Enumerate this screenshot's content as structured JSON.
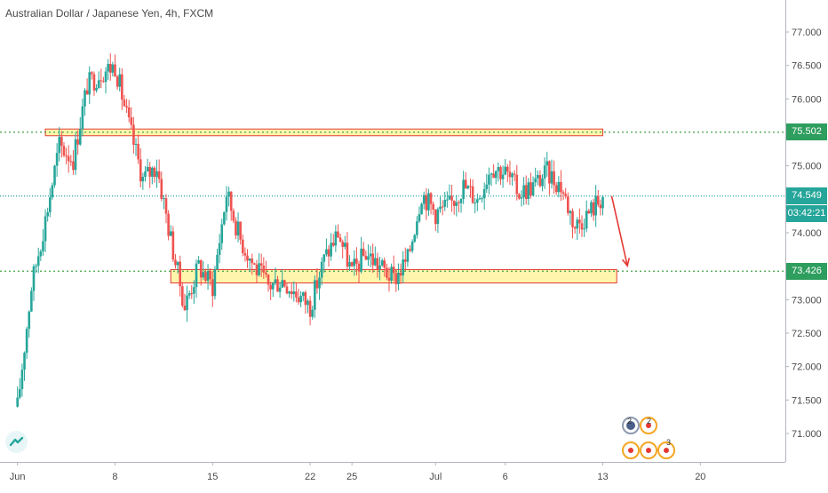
{
  "header": {
    "title": "Australian Dollar / Japanese Yen, 4h, FXCM"
  },
  "price_axis": {
    "tick_labels": [
      "77.000",
      "76.500",
      "76.000",
      "75.000",
      "74.000",
      "73.000",
      "72.500",
      "72.000",
      "71.500",
      "71.000"
    ]
  },
  "time_axis": {
    "tick_labels": [
      "Jun",
      "8",
      "15",
      "22",
      "25",
      "Jul",
      "6",
      "13",
      "20"
    ]
  },
  "badges": {
    "resistance": "75.502",
    "last_price": "74.549",
    "countdown": "03:42:21",
    "support": "73.426"
  },
  "ideas": {
    "count_a": "2",
    "count_b": "2",
    "count_c": "3"
  },
  "colors": {
    "up": "#26a69a",
    "down": "#ef5350",
    "zone_fill": "#fff59d",
    "zone_border": "#e53935",
    "level_line": "#43a047",
    "arrow": "#e53935",
    "badge_green": "#2e9e5e",
    "badge_teal": "#26a69a"
  },
  "chart_data": {
    "type": "candlestick",
    "title": "Australian Dollar / Japanese Yen, 4h, FXCM",
    "series": [
      {
        "name": "AUDJPY",
        "close_path": [
          [
            "Jun 1",
            71.4
          ],
          [
            "Jun 2",
            73.2
          ],
          [
            "Jun 3",
            74.2
          ],
          [
            "Jun 4",
            75.3
          ],
          [
            "Jun 5",
            75.1
          ],
          [
            "Jun 6",
            76.2
          ],
          [
            "Jun 7",
            76.4
          ],
          [
            "Jun 8",
            76.5
          ],
          [
            "Jun 9",
            75.6
          ],
          [
            "Jun 10",
            74.8
          ],
          [
            "Jun 11",
            75.0
          ],
          [
            "Jun 12",
            73.9
          ],
          [
            "Jun 13",
            72.9
          ],
          [
            "Jun 14",
            73.5
          ],
          [
            "Jun 15",
            73.2
          ],
          [
            "Jun 16",
            74.6
          ],
          [
            "Jun 17",
            73.9
          ],
          [
            "Jun 18",
            73.5
          ],
          [
            "Jun 19",
            73.2
          ],
          [
            "Jun 20",
            73.3
          ],
          [
            "Jun 21",
            73.1
          ],
          [
            "Jun 22",
            72.9
          ],
          [
            "Jun 23",
            73.6
          ],
          [
            "Jun 24",
            74.0
          ],
          [
            "Jun 25",
            73.4
          ],
          [
            "Jun 26",
            73.7
          ],
          [
            "Jun 27",
            73.5
          ],
          [
            "Jun 28",
            73.3
          ],
          [
            "Jun 29",
            73.6
          ],
          [
            "Jun 30",
            74.6
          ],
          [
            "Jul 1",
            74.3
          ],
          [
            "Jul 2",
            74.4
          ],
          [
            "Jul 3",
            74.7
          ],
          [
            "Jul 4",
            74.5
          ],
          [
            "Jul 5",
            75.0
          ],
          [
            "Jul 6",
            74.9
          ],
          [
            "Jul 7",
            74.6
          ],
          [
            "Jul 8",
            74.7
          ],
          [
            "Jul 9",
            74.9
          ],
          [
            "Jul 10",
            74.7
          ],
          [
            "Jul 11",
            74.1
          ],
          [
            "Jul 12",
            74.3
          ],
          [
            "Jul 13",
            74.549
          ]
        ]
      }
    ],
    "levels": [
      {
        "label": "75.502",
        "value": 75.502
      },
      {
        "label": "74.549",
        "value": 74.549
      },
      {
        "label": "73.426",
        "value": 73.426
      }
    ],
    "zones": [
      {
        "from": "Jun 3",
        "to": "Jul 13",
        "low": 75.45,
        "high": 75.55
      },
      {
        "from": "Jun 12",
        "to": "Jul 14",
        "low": 73.25,
        "high": 73.45
      }
    ],
    "projection": {
      "from": [
        "Jul 13",
        74.549
      ],
      "to": [
        "Jul 14",
        73.426
      ]
    },
    "ylim": [
      70.6,
      77.3
    ],
    "xlim": [
      "May 31",
      "Jul 21"
    ]
  }
}
